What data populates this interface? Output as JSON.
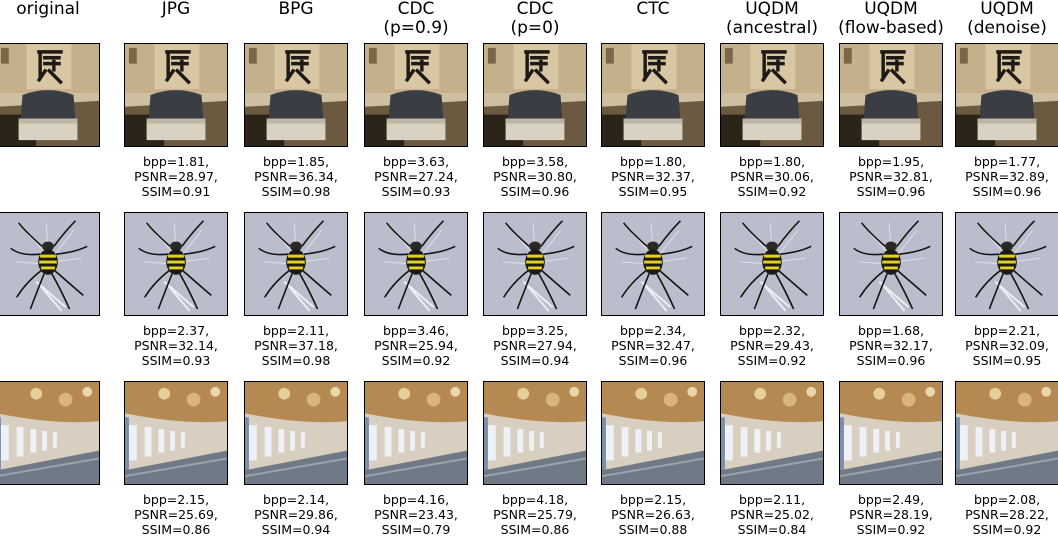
{
  "figure": {
    "columns": [
      {
        "line1": "original",
        "line2": ""
      },
      {
        "line1": "JPG",
        "line2": ""
      },
      {
        "line1": "BPG",
        "line2": ""
      },
      {
        "line1": "CDC",
        "line2": "(p=0.9)"
      },
      {
        "line1": "CDC",
        "line2": "(p=0)"
      },
      {
        "line1": "CTC",
        "line2": ""
      },
      {
        "line1": "UQDM",
        "line2": "(ancestral)"
      },
      {
        "line1": "UQDM",
        "line2": "(flow-based)"
      },
      {
        "line1": "UQDM",
        "line2": "(denoise)"
      }
    ],
    "rows": [
      {
        "image": "kanji-sign-box-photo",
        "metrics": [
          [
            "bpp=1.81,",
            "PSNR=28.97,",
            "SSIM=0.91"
          ],
          [
            "bpp=1.85,",
            "PSNR=36.34,",
            "SSIM=0.98"
          ],
          [
            "bpp=3.63,",
            "PSNR=27.24,",
            "SSIM=0.93"
          ],
          [
            "bpp=3.58,",
            "PSNR=30.80,",
            "SSIM=0.96"
          ],
          [
            "bpp=1.80,",
            "PSNR=32.37,",
            "SSIM=0.95"
          ],
          [
            "bpp=1.80,",
            "PSNR=30.06,",
            "SSIM=0.92"
          ],
          [
            "bpp=1.95,",
            "PSNR=32.81,",
            "SSIM=0.96"
          ],
          [
            "bpp=1.77,",
            "PSNR=32.89,",
            "SSIM=0.96"
          ]
        ]
      },
      {
        "image": "spider-photo",
        "metrics": [
          [
            "bpp=2.37,",
            "PSNR=32.14,",
            "SSIM=0.93"
          ],
          [
            "bpp=2.11,",
            "PSNR=37.18,",
            "SSIM=0.98"
          ],
          [
            "bpp=3.46,",
            "PSNR=25.94,",
            "SSIM=0.92"
          ],
          [
            "bpp=3.25,",
            "PSNR=27.94,",
            "SSIM=0.94"
          ],
          [
            "bpp=2.34,",
            "PSNR=32.47,",
            "SSIM=0.96"
          ],
          [
            "bpp=2.32,",
            "PSNR=29.43,",
            "SSIM=0.92"
          ],
          [
            "bpp=1.68,",
            "PSNR=32.17,",
            "SSIM=0.96"
          ],
          [
            "bpp=2.21,",
            "PSNR=32.09,",
            "SSIM=0.95"
          ]
        ]
      },
      {
        "image": "palace-hall-photo",
        "metrics": [
          [
            "bpp=2.15,",
            "PSNR=25.69,",
            "SSIM=0.86"
          ],
          [
            "bpp=2.14,",
            "PSNR=29.86,",
            "SSIM=0.94"
          ],
          [
            "bpp=4.16,",
            "PSNR=23.43,",
            "SSIM=0.79"
          ],
          [
            "bpp=4.18,",
            "PSNR=25.79,",
            "SSIM=0.86"
          ],
          [
            "bpp=2.15,",
            "PSNR=26.63,",
            "SSIM=0.88"
          ],
          [
            "bpp=2.11,",
            "PSNR=25.02,",
            "SSIM=0.84"
          ],
          [
            "bpp=2.49,",
            "PSNR=28.19,",
            "SSIM=0.92"
          ],
          [
            "bpp=2.08,",
            "PSNR=28.22,",
            "SSIM=0.92"
          ]
        ]
      }
    ]
  }
}
